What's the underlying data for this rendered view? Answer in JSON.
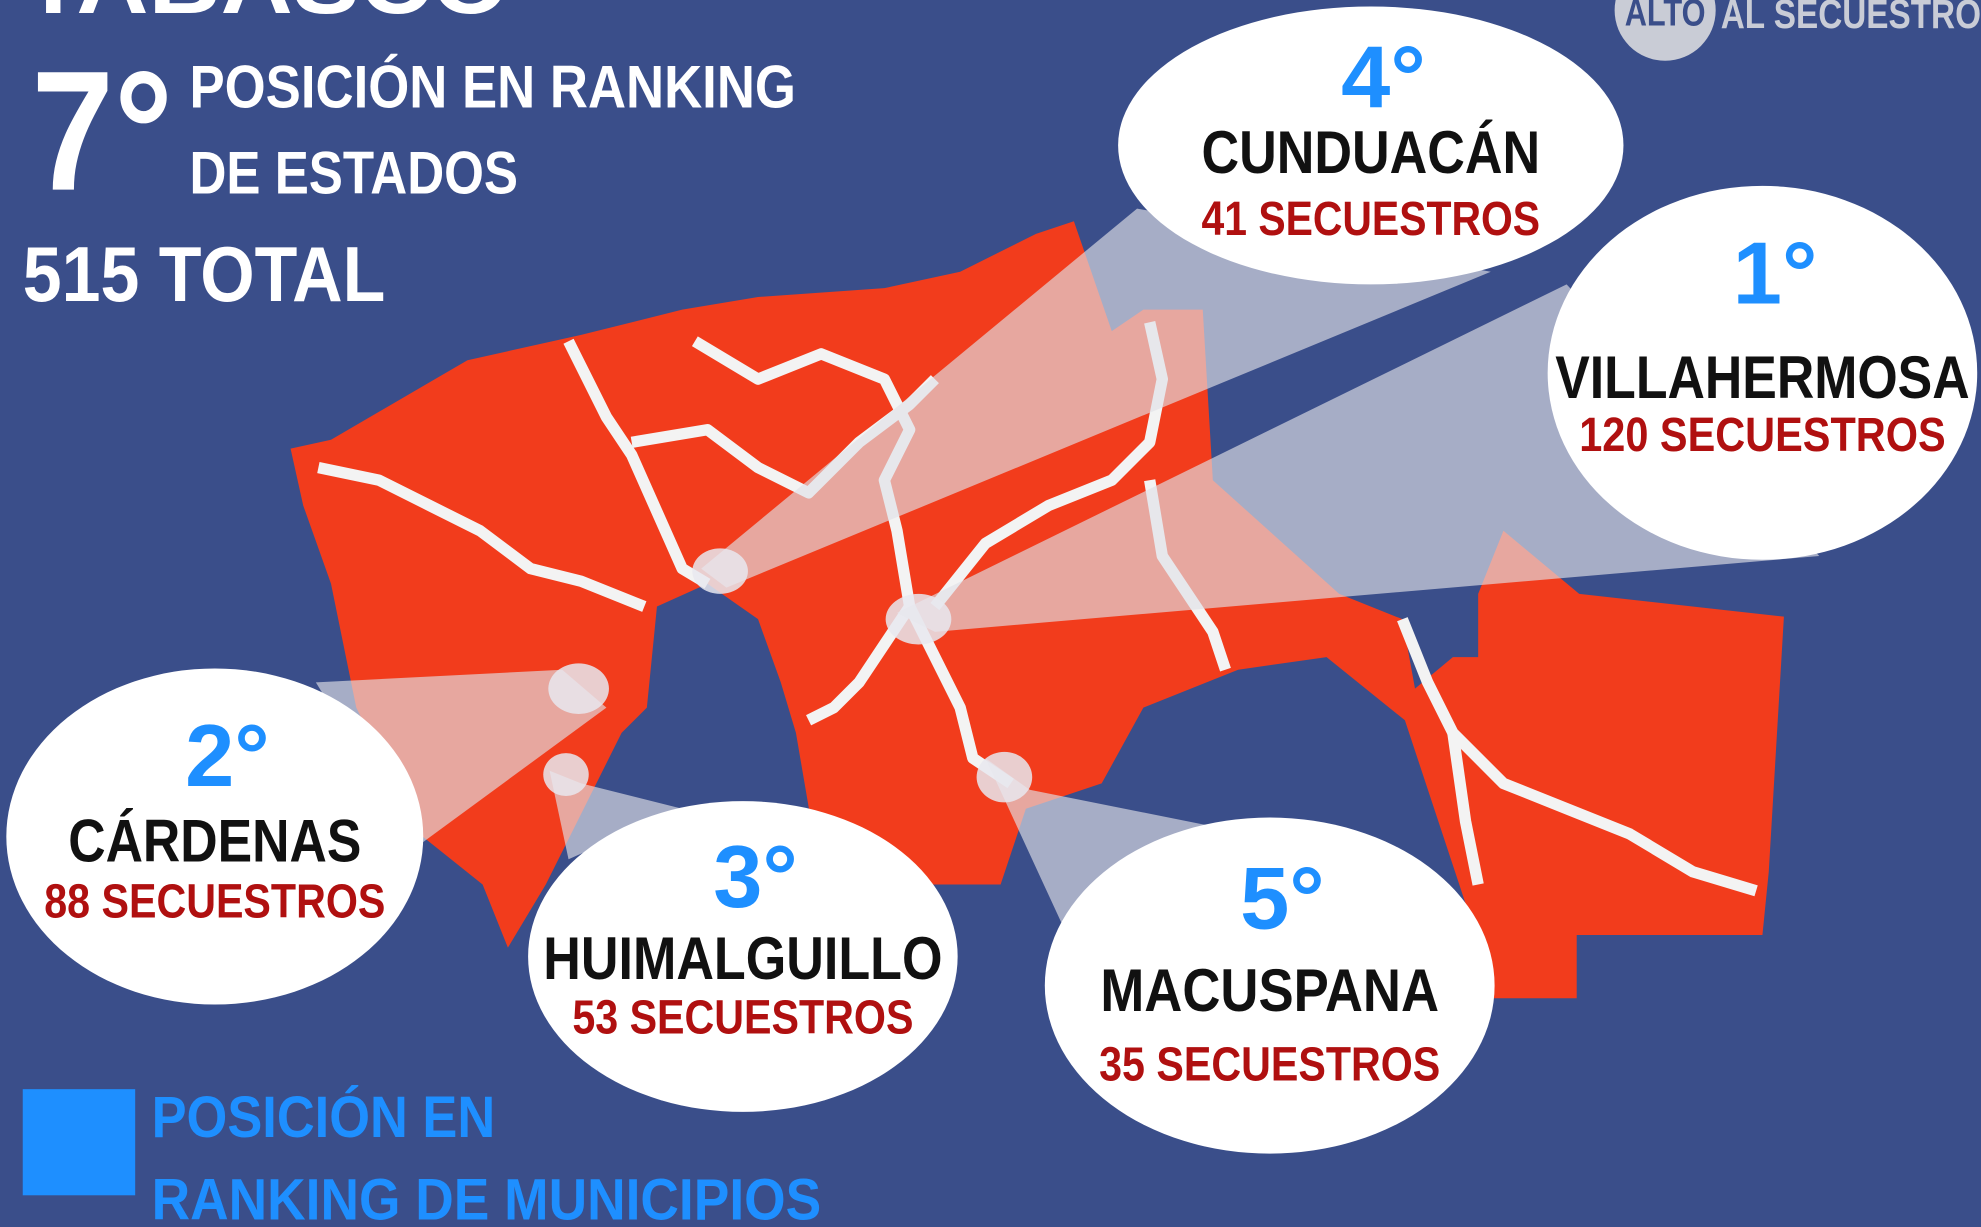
{
  "header": {
    "title": "TABASCO",
    "rank": "7°",
    "rank_text": [
      "POSICIÓN EN RANKING",
      "DE ESTADOS"
    ],
    "total": "515 TOTAL"
  },
  "logo": {
    "badge": "ALTO",
    "text": "AL SECUESTRO"
  },
  "municipalities": [
    {
      "rank": "4°",
      "name": "CUNDUACÁN",
      "count": "41 SECUESTROS"
    },
    {
      "rank": "1°",
      "name": "VILLAHERMOSA",
      "count": "120 SECUESTROS"
    },
    {
      "rank": "2°",
      "name": "CÁRDENAS",
      "count": "88 SECUESTROS"
    },
    {
      "rank": "3°",
      "name": "HUIMALGUILLO",
      "count": "53 SECUESTROS"
    },
    {
      "rank": "5°",
      "name": "MACUSPANA",
      "count": "35 SECUESTROS"
    }
  ],
  "legend": {
    "lines": [
      "POSICIÓN EN",
      "RANKING DE MUNICIPIOS"
    ]
  }
}
